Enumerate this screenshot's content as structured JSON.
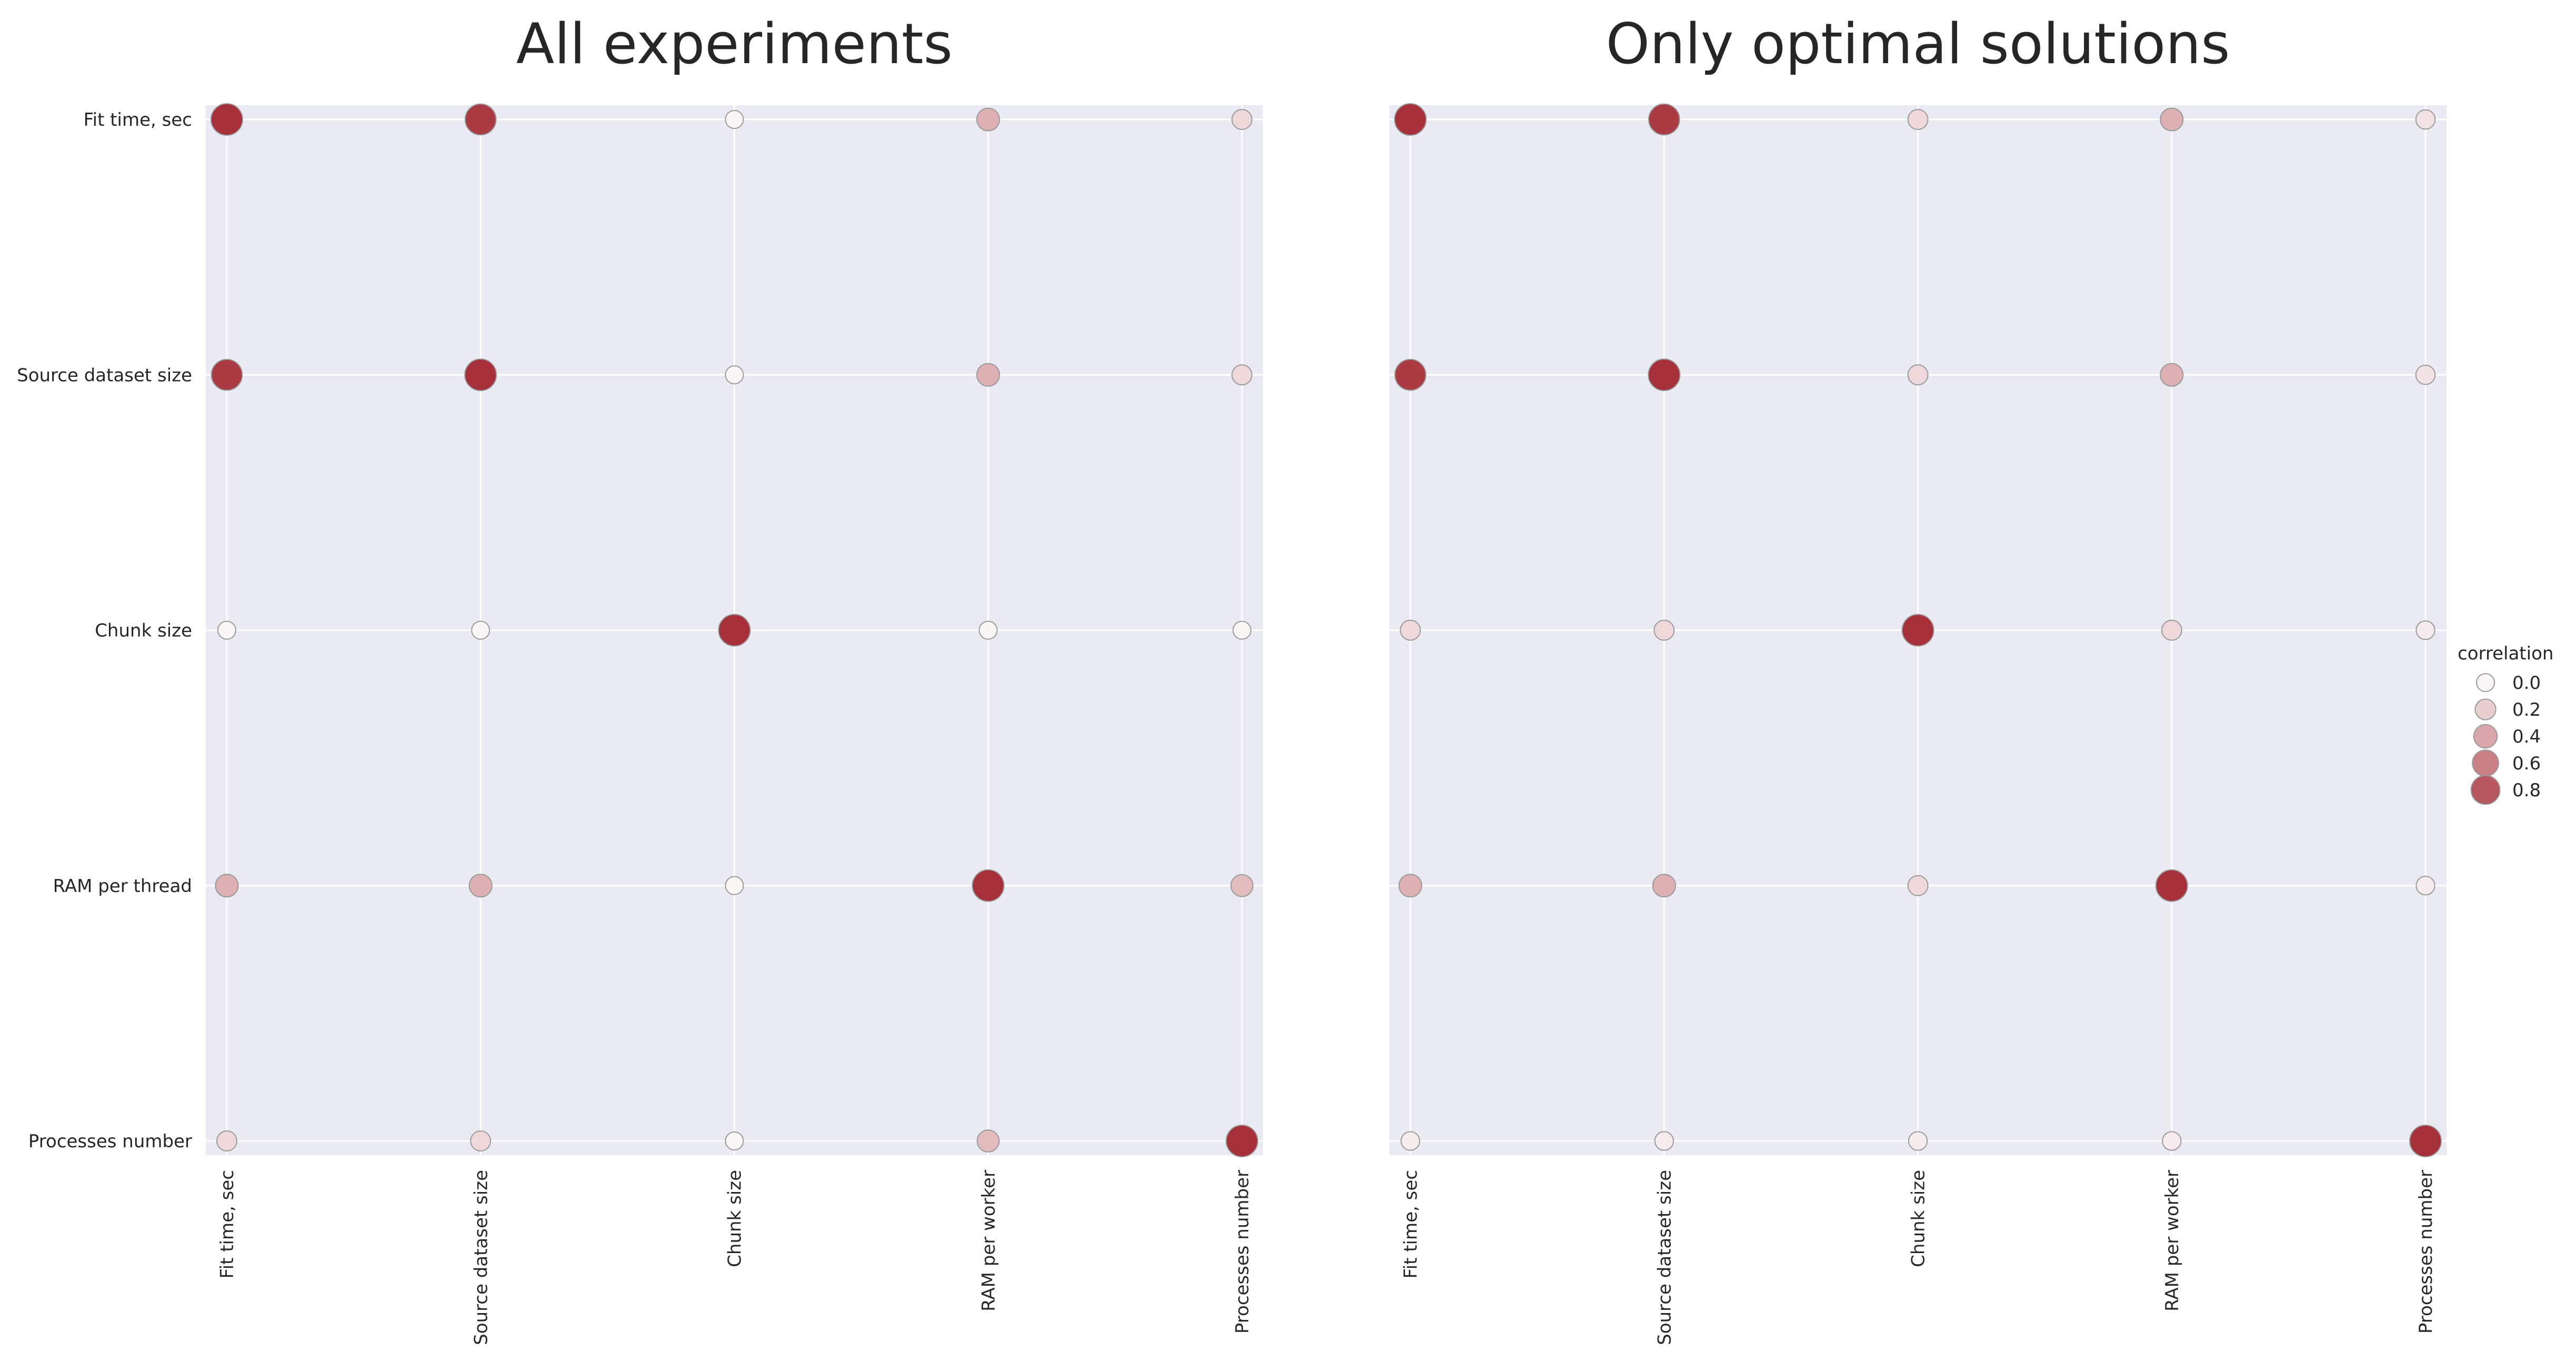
{
  "chart_data": [
    {
      "type": "scatter",
      "title": "All experiments",
      "x_categories": [
        "Fit time, sec",
        "Source dataset size",
        "Chunk size",
        "RAM per worker",
        "Processes number"
      ],
      "y_categories": [
        "Fit time, sec",
        "Source dataset size",
        "Chunk size",
        "RAM per thread",
        "Processes number"
      ],
      "grid": true,
      "matrix": [
        [
          1.0,
          0.95,
          0.0,
          0.35,
          0.15
        ],
        [
          0.95,
          1.0,
          0.0,
          0.35,
          0.15
        ],
        [
          0.0,
          0.0,
          1.0,
          0.0,
          0.0
        ],
        [
          0.35,
          0.35,
          0.0,
          1.0,
          0.3
        ],
        [
          0.15,
          0.15,
          0.0,
          0.3,
          1.0
        ]
      ]
    },
    {
      "type": "scatter",
      "title": "Only optimal solutions",
      "x_categories": [
        "Fit time, sec",
        "Source dataset size",
        "Chunk size",
        "RAM per worker",
        "Processes number"
      ],
      "y_categories": [
        "Fit time, sec",
        "Source dataset size",
        "Chunk size",
        "RAM per thread",
        "Processes number"
      ],
      "grid": true,
      "matrix": [
        [
          1.0,
          0.95,
          0.15,
          0.35,
          0.1
        ],
        [
          0.95,
          1.0,
          0.15,
          0.35,
          0.1
        ],
        [
          0.15,
          0.15,
          1.0,
          0.15,
          0.05
        ],
        [
          0.35,
          0.35,
          0.15,
          1.0,
          0.05
        ],
        [
          0.05,
          0.05,
          0.05,
          0.05,
          1.0
        ]
      ]
    }
  ],
  "legend": {
    "title": "correlation",
    "position": "right",
    "entries": [
      {
        "value": 0.0,
        "label": "0.0"
      },
      {
        "value": 0.2,
        "label": "0.2"
      },
      {
        "value": 0.4,
        "label": "0.4"
      },
      {
        "value": 0.6,
        "label": "0.6"
      },
      {
        "value": 0.8,
        "label": "0.8"
      }
    ]
  },
  "colors": {
    "panel_background": "#eaeaf2",
    "grid": "#ffffff",
    "marker_low": "#fbf6f6",
    "marker_high": "#a6313a",
    "marker_edge": "#9a9a9a"
  }
}
